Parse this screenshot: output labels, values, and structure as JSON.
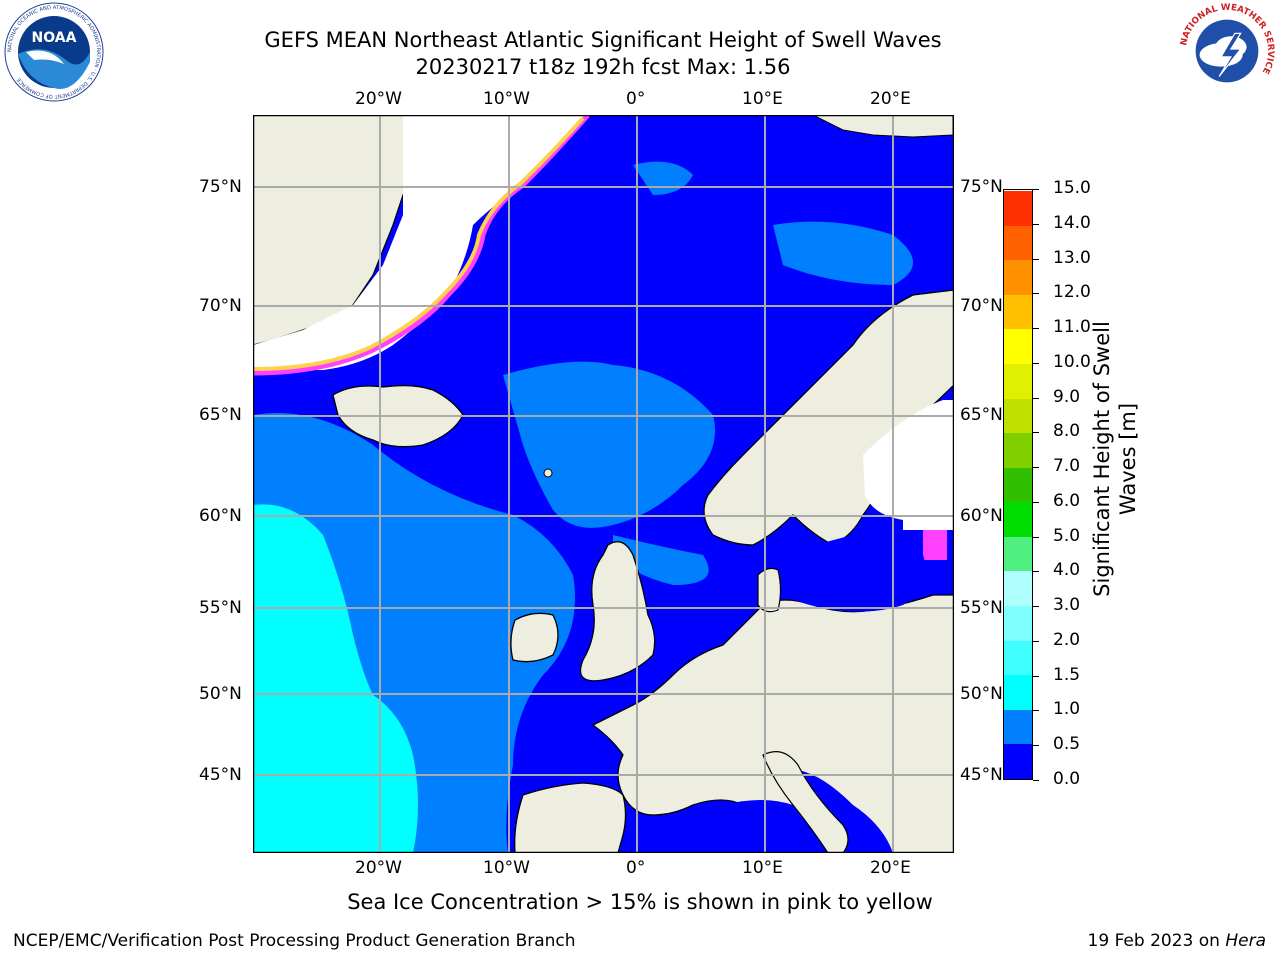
{
  "header": {
    "title_line1": "GEFS MEAN Northeast Atlantic Significant Height of Swell Waves",
    "title_line2": "20230217 t18z 192h fcst   Max: 1.56"
  },
  "logos": {
    "noaa_text": "NOAA",
    "noaa_ring_text": "NATIONAL OCEANIC AND ATMOSPHERIC ADMINISTRATION · U.S. DEPARTMENT OF COMMERCE",
    "nws_ring_text": "NATIONAL WEATHER SERVICE"
  },
  "map": {
    "lon_labels": [
      "20°W",
      "10°W",
      "0°",
      "10°E",
      "20°E"
    ],
    "lat_labels": [
      "75°N",
      "70°N",
      "65°N",
      "60°N",
      "55°N",
      "50°N",
      "45°N"
    ],
    "colors": {
      "land": "#eeeee0",
      "sea_low": "#0000ff",
      "sea_mid": "#0080ff",
      "sea_high": "#00ffff",
      "ice_edge": "#ff40ff",
      "ice_yellow": "#ffd24d",
      "grid": "#aaaaaa"
    }
  },
  "colorbar": {
    "label_line1": "Significant Height of Swell",
    "label_line2": "Waves [m]",
    "ticks": [
      "15.0",
      "14.0",
      "13.0",
      "12.0",
      "11.0",
      "10.0",
      "9.0",
      "8.0",
      "7.0",
      "6.0",
      "5.0",
      "4.0",
      "3.0",
      "2.0",
      "1.5",
      "1.0",
      "0.5",
      "0.0"
    ],
    "colors": [
      "#0000ff",
      "#0080ff",
      "#00ffff",
      "#40ffff",
      "#80ffff",
      "#b0ffff",
      "#50f080",
      "#00dd00",
      "#30c000",
      "#80d000",
      "#c0e000",
      "#e0f000",
      "#ffff00",
      "#ffc000",
      "#ff9000",
      "#ff6000",
      "#ff3000"
    ]
  },
  "caption": "Sea Ice Concentration > 15% is shown in pink to yellow",
  "footer": {
    "left": "NCEP/EMC/Verification Post Processing Product Generation Branch",
    "right_date": "19 Feb 2023 on ",
    "right_machine": "Hera"
  }
}
